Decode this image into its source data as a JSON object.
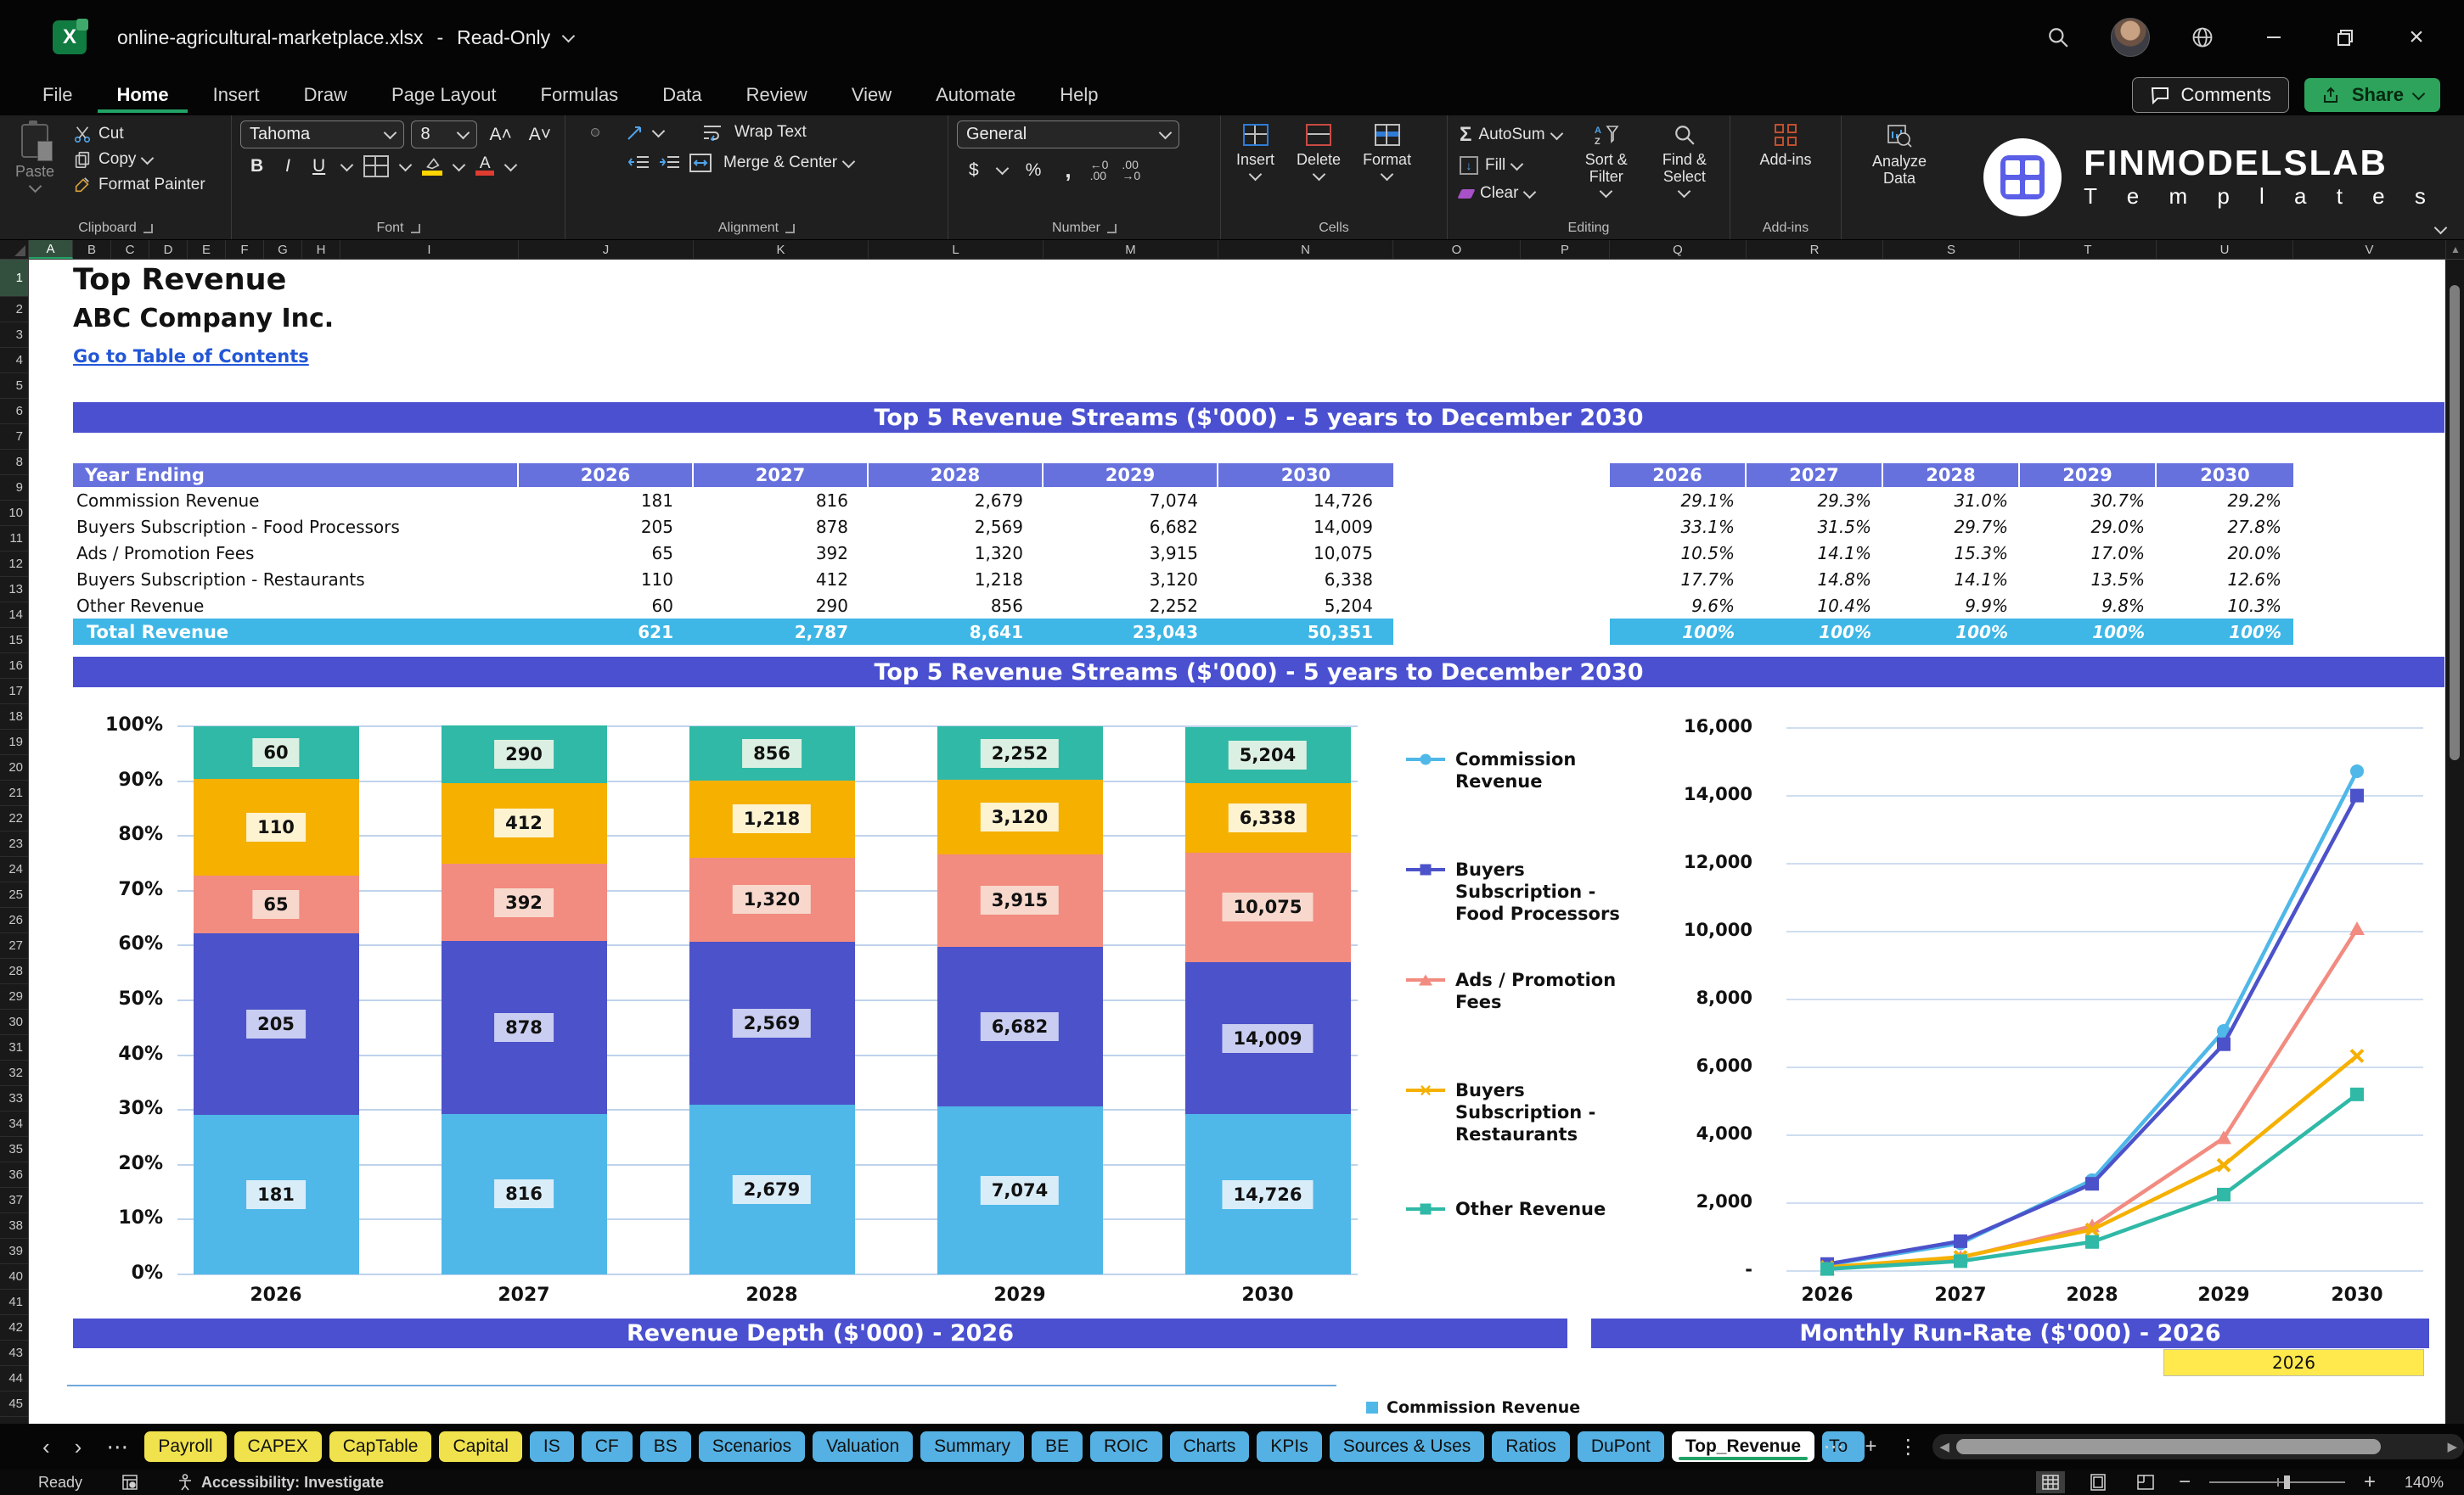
{
  "titlebar": {
    "filename": "online-agricultural-marketplace.xlsx",
    "separator": "-",
    "mode": "Read-Only"
  },
  "menubar": {
    "items": [
      "File",
      "Home",
      "Insert",
      "Draw",
      "Page Layout",
      "Formulas",
      "Data",
      "Review",
      "View",
      "Automate",
      "Help"
    ],
    "active_item": "Home",
    "comments_label": "Comments",
    "share_label": "Share"
  },
  "ribbon": {
    "paste": "Paste",
    "cut": "Cut",
    "copy": "Copy",
    "format_painter": "Format Painter",
    "font_name": "Tahoma",
    "font_size": "8",
    "wrap_text": "Wrap Text",
    "merge_center": "Merge & Center",
    "number_format": "General",
    "insert": "Insert",
    "delete": "Delete",
    "format": "Format",
    "autosum": "AutoSum",
    "fill": "Fill",
    "clear": "Clear",
    "sort_filter": "Sort & Filter",
    "find_select": "Find & Select",
    "addins_btn": "Add-ins",
    "analyze_data": "Analyze Data",
    "groups": {
      "clipboard": "Clipboard",
      "font": "Font",
      "alignment": "Alignment",
      "number": "Number",
      "cells": "Cells",
      "editing": "Editing",
      "addins": "Add-ins"
    },
    "logo_line1": "FINMODELSLAB",
    "logo_line2": "T e m p l a t e s"
  },
  "grid": {
    "columns": [
      "A",
      "B",
      "C",
      "D",
      "E",
      "F",
      "G",
      "H",
      "I",
      "J",
      "K",
      "L",
      "M",
      "N",
      "O",
      "P",
      "Q",
      "R",
      "S",
      "T",
      "U",
      "V"
    ],
    "row_count": 45,
    "selected_column": "A",
    "selected_row": 1
  },
  "sheet": {
    "title": "Top Revenue",
    "company": "ABC Company Inc.",
    "link": "Go to Table of Contents",
    "banner1": "Top 5 Revenue Streams ($'000) - 5 years to December 2030",
    "banner2": "Top 5 Revenue Streams ($'000) - 5 years to December 2030",
    "banner_bottom_left": "Revenue Depth ($'000) - 2026",
    "banner_bottom_right": "Monthly Run-Rate ($'000) - 2026",
    "year_cell": "2026",
    "mini_legend_label": "Commission Revenue"
  },
  "table": {
    "header": "Year Ending",
    "years": [
      "2026",
      "2027",
      "2028",
      "2029",
      "2030"
    ],
    "rows": [
      {
        "label": "Commission Revenue",
        "values": [
          "181",
          "816",
          "2,679",
          "7,074",
          "14,726"
        ],
        "pcts": [
          "29.1%",
          "29.3%",
          "31.0%",
          "30.7%",
          "29.2%"
        ]
      },
      {
        "label": "Buyers Subscription - Food Processors",
        "values": [
          "205",
          "878",
          "2,569",
          "6,682",
          "14,009"
        ],
        "pcts": [
          "33.1%",
          "31.5%",
          "29.7%",
          "29.0%",
          "27.8%"
        ]
      },
      {
        "label": "Ads / Promotion Fees",
        "values": [
          "65",
          "392",
          "1,320",
          "3,915",
          "10,075"
        ],
        "pcts": [
          "10.5%",
          "14.1%",
          "15.3%",
          "17.0%",
          "20.0%"
        ]
      },
      {
        "label": "Buyers Subscription - Restaurants",
        "values": [
          "110",
          "412",
          "1,218",
          "3,120",
          "6,338"
        ],
        "pcts": [
          "17.7%",
          "14.8%",
          "14.1%",
          "13.5%",
          "12.6%"
        ]
      },
      {
        "label": "Other Revenue",
        "values": [
          "60",
          "290",
          "856",
          "2,252",
          "5,204"
        ],
        "pcts": [
          "9.6%",
          "10.4%",
          "9.9%",
          "9.8%",
          "10.3%"
        ]
      }
    ],
    "total_label": "Total Revenue",
    "total_values": [
      "621",
      "2,787",
      "8,641",
      "23,043",
      "50,351"
    ],
    "total_pcts": [
      "100%",
      "100%",
      "100%",
      "100%",
      "100%"
    ]
  },
  "chart_data": [
    {
      "type": "bar",
      "stacked": "percent",
      "title": "Top 5 Revenue Streams ($'000) - 5 years to December 2030",
      "categories": [
        "2026",
        "2027",
        "2028",
        "2029",
        "2030"
      ],
      "series": [
        {
          "name": "Commission Revenue",
          "color": "#4FB8E8",
          "label_bg": "#D9EDF9",
          "values": [
            181,
            816,
            2679,
            7074,
            14726
          ],
          "labels": [
            "181",
            "816",
            "2,679",
            "7,074",
            "14,726"
          ],
          "pcts": [
            29.1,
            29.3,
            31.0,
            30.7,
            29.2
          ]
        },
        {
          "name": "Buyers Subscription - Food Processors",
          "color": "#4C52C9",
          "label_bg": "#C9CDF1",
          "values": [
            205,
            878,
            2569,
            6682,
            14009
          ],
          "labels": [
            "205",
            "878",
            "2,569",
            "6,682",
            "14,009"
          ],
          "pcts": [
            33.1,
            31.5,
            29.7,
            29.0,
            27.8
          ]
        },
        {
          "name": "Ads / Promotion Fees",
          "color": "#F28B80",
          "label_bg": "#F8D8CC",
          "values": [
            65,
            392,
            1320,
            3915,
            10075
          ],
          "labels": [
            "65",
            "392",
            "1,320",
            "3,915",
            "10,075"
          ],
          "pcts": [
            10.5,
            14.1,
            15.3,
            17.0,
            20.0
          ]
        },
        {
          "name": "Buyers Subscription - Restaurants",
          "color": "#F5B000",
          "label_bg": "#FDF3D1",
          "values": [
            110,
            412,
            1218,
            3120,
            6338
          ],
          "labels": [
            "110",
            "412",
            "1,218",
            "3,120",
            "6,338"
          ],
          "pcts": [
            17.7,
            14.8,
            14.1,
            13.5,
            12.6
          ]
        },
        {
          "name": "Other Revenue",
          "color": "#2FB9A6",
          "label_bg": "#DBF0E2",
          "values": [
            60,
            290,
            856,
            2252,
            5204
          ],
          "labels": [
            "60",
            "290",
            "856",
            "2,252",
            "5,204"
          ],
          "pcts": [
            9.6,
            10.4,
            9.9,
            9.8,
            10.3
          ]
        }
      ],
      "yticks": [
        "100%",
        "90%",
        "80%",
        "70%",
        "60%",
        "50%",
        "40%",
        "30%",
        "20%",
        "10%",
        "0%"
      ],
      "ylim": [
        0,
        100
      ],
      "grid": true,
      "legend_position": "none"
    },
    {
      "type": "line",
      "x": [
        "2026",
        "2027",
        "2028",
        "2029",
        "2030"
      ],
      "series": [
        {
          "name": "Commission Revenue",
          "color": "#4FB8E8",
          "marker": "circle",
          "values": [
            181,
            816,
            2679,
            7074,
            14726
          ]
        },
        {
          "name": "Buyers Subscription - Food Processors",
          "color": "#4C52C9",
          "marker": "square",
          "values": [
            205,
            878,
            2569,
            6682,
            14009
          ]
        },
        {
          "name": "Ads / Promotion Fees",
          "color": "#F28B80",
          "marker": "triangle",
          "values": [
            65,
            392,
            1320,
            3915,
            10075
          ]
        },
        {
          "name": "Buyers Subscription - Restaurants",
          "color": "#F5B000",
          "marker": "x",
          "values": [
            110,
            412,
            1218,
            3120,
            6338
          ]
        },
        {
          "name": "Other Revenue",
          "color": "#2FB9A6",
          "marker": "square",
          "values": [
            60,
            290,
            856,
            2252,
            5204
          ]
        }
      ],
      "ylim": [
        0,
        16000
      ],
      "ytick_values": [
        16000,
        14000,
        12000,
        10000,
        8000,
        6000,
        4000,
        2000,
        0
      ],
      "ytick_labels": [
        "16,000",
        "14,000",
        "12,000",
        "10,000",
        "8,000",
        "6,000",
        "4,000",
        "2,000",
        "-"
      ],
      "grid": true,
      "legend_position": "left"
    }
  ],
  "sheet_tabs": {
    "tabs": [
      {
        "label": "Payroll",
        "style": "yellow"
      },
      {
        "label": "CAPEX",
        "style": "yellow"
      },
      {
        "label": "CapTable",
        "style": "yellow"
      },
      {
        "label": "Capital",
        "style": "yellow"
      },
      {
        "label": "IS",
        "style": "blue"
      },
      {
        "label": "CF",
        "style": "blue"
      },
      {
        "label": "BS",
        "style": "blue"
      },
      {
        "label": "Scenarios",
        "style": "blue"
      },
      {
        "label": "Valuation",
        "style": "blue"
      },
      {
        "label": "Summary",
        "style": "blue"
      },
      {
        "label": "BE",
        "style": "blue"
      },
      {
        "label": "ROIC",
        "style": "blue"
      },
      {
        "label": "Charts",
        "style": "blue"
      },
      {
        "label": "KPIs",
        "style": "blue"
      },
      {
        "label": "Sources & Uses",
        "style": "blue"
      },
      {
        "label": "Ratios",
        "style": "blue"
      },
      {
        "label": "DuPont",
        "style": "blue"
      },
      {
        "label": "Top_Revenue",
        "style": "active"
      },
      {
        "label": "To",
        "style": "blue",
        "truncated": true
      }
    ]
  },
  "statusbar": {
    "ready": "Ready",
    "accessibility": "Accessibility: Investigate",
    "zoom_level": "140%"
  }
}
